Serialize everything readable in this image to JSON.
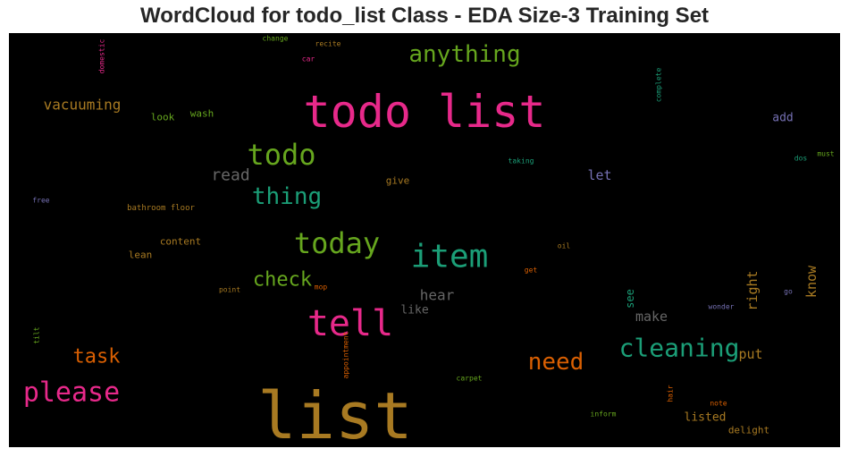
{
  "chart_data": {
    "type": "wordcloud",
    "title": "WordCloud for todo_list Class - EDA Size-3 Training Set",
    "background": "#000000",
    "words": [
      {
        "text": "list",
        "color": "#a87a22"
      },
      {
        "text": "todo list",
        "color": "#e7298a"
      },
      {
        "text": "tell",
        "color": "#e7298a"
      },
      {
        "text": "item",
        "color": "#1b9e77"
      },
      {
        "text": "today",
        "color": "#66a61e"
      },
      {
        "text": "todo",
        "color": "#66a61e"
      },
      {
        "text": "please",
        "color": "#e7298a"
      },
      {
        "text": "cleaning",
        "color": "#1b9e77"
      },
      {
        "text": "anything",
        "color": "#66a61e"
      },
      {
        "text": "thing",
        "color": "#1b9e77"
      },
      {
        "text": "need",
        "color": "#d95f02"
      },
      {
        "text": "check",
        "color": "#66a61e"
      },
      {
        "text": "task",
        "color": "#d95f02"
      },
      {
        "text": "read",
        "color": "#666666"
      },
      {
        "text": "vacuuming",
        "color": "#a87a22"
      },
      {
        "text": "hear",
        "color": "#666666"
      },
      {
        "text": "make",
        "color": "#666666"
      },
      {
        "text": "put",
        "color": "#a87a22"
      },
      {
        "text": "know",
        "color": "#a87a22"
      },
      {
        "text": "right",
        "color": "#a87a22"
      },
      {
        "text": "let",
        "color": "#7570b3"
      },
      {
        "text": "like",
        "color": "#666666"
      },
      {
        "text": "add",
        "color": "#7570b3"
      },
      {
        "text": "listed",
        "color": "#a87a22"
      },
      {
        "text": "see",
        "color": "#1b9e77"
      },
      {
        "text": "look",
        "color": "#66a61e"
      },
      {
        "text": "wash",
        "color": "#66a61e"
      },
      {
        "text": "content",
        "color": "#a87a22"
      },
      {
        "text": "lean",
        "color": "#a87a22"
      },
      {
        "text": "delight",
        "color": "#a87a22"
      },
      {
        "text": "give",
        "color": "#a87a22"
      },
      {
        "text": "bathroom floor",
        "color": "#a87a22"
      },
      {
        "text": "free",
        "color": "#7570b3"
      },
      {
        "text": "change",
        "color": "#66a61e"
      },
      {
        "text": "recite",
        "color": "#a87a22"
      },
      {
        "text": "car",
        "color": "#e7298a"
      },
      {
        "text": "domestic",
        "color": "#e7298a"
      },
      {
        "text": "complete",
        "color": "#1b9e77"
      },
      {
        "text": "taking",
        "color": "#1b9e77"
      },
      {
        "text": "dos",
        "color": "#1b9e77"
      },
      {
        "text": "must",
        "color": "#66a61e"
      },
      {
        "text": "oil",
        "color": "#a87a22"
      },
      {
        "text": "get",
        "color": "#d95f02"
      },
      {
        "text": "point",
        "color": "#a87a22"
      },
      {
        "text": "mop",
        "color": "#d95f02"
      },
      {
        "text": "wonder",
        "color": "#7570b3"
      },
      {
        "text": "go",
        "color": "#7570b3"
      },
      {
        "text": "tilt",
        "color": "#66a61e"
      },
      {
        "text": "appointment",
        "color": "#d95f02"
      },
      {
        "text": "carpet",
        "color": "#66a61e"
      },
      {
        "text": "hair",
        "color": "#d95f02"
      },
      {
        "text": "note",
        "color": "#d95f02"
      },
      {
        "text": "inform",
        "color": "#66a61e"
      }
    ]
  }
}
